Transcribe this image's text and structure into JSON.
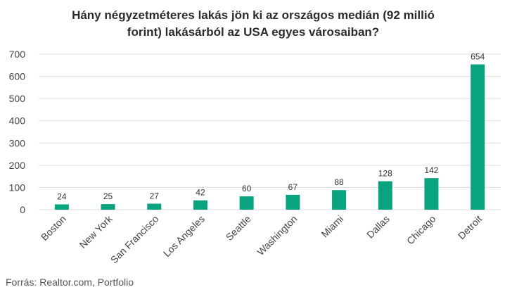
{
  "chart_data": {
    "type": "bar",
    "title_lines": [
      "Hány négyzetméteres lakás jön ki az országos medián (92 millió",
      "forint) lakásárból az USA egyes városaiban?"
    ],
    "categories": [
      "Boston",
      "New York",
      "San Francisco",
      "Los Angeles",
      "Seattle",
      "Washington",
      "Miami",
      "Dallas",
      "Chicago",
      "Detroit"
    ],
    "values": [
      24,
      25,
      27,
      42,
      60,
      67,
      88,
      128,
      142,
      654
    ],
    "yticks": [
      0,
      100,
      200,
      300,
      400,
      500,
      600,
      700
    ],
    "ylim": [
      0,
      700
    ],
    "grid": true,
    "bar_color": "#0aa37f",
    "grid_color": "#dddddd"
  },
  "source": "Forrás: Realtor.com, Portfolio"
}
